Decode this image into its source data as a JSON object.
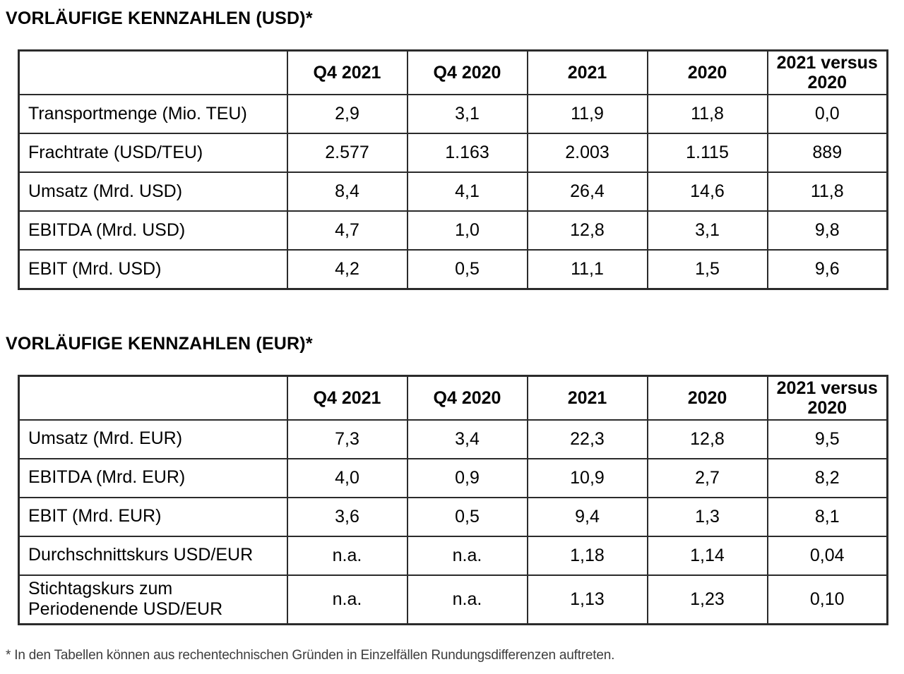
{
  "colors": {
    "background": "#ffffff",
    "text": "#000000",
    "table_border": "#2b2b2b",
    "footnote_text": "#3d3d3d"
  },
  "document": {
    "sections": [
      {
        "id": "usd",
        "title": "VORLÄUFIGE KENNZAHLEN (USD)*",
        "table": {
          "column_headers": [
            "",
            "Q4 2021",
            "Q4 2020",
            "2021",
            "2020",
            "2021 versus 2020"
          ],
          "rows": [
            {
              "label": "Transportmenge (Mio. TEU)",
              "values": [
                "2,9",
                "3,1",
                "11,9",
                "11,8",
                "0,0"
              ]
            },
            {
              "label": "Frachtrate (USD/TEU)",
              "values": [
                "2.577",
                "1.163",
                "2.003",
                "1.115",
                "889"
              ]
            },
            {
              "label": "Umsatz (Mrd. USD)",
              "values": [
                "8,4",
                "4,1",
                "26,4",
                "14,6",
                "11,8"
              ]
            },
            {
              "label": "EBITDA (Mrd. USD)",
              "values": [
                "4,7",
                "1,0",
                "12,8",
                "3,1",
                "9,8"
              ]
            },
            {
              "label": "EBIT (Mrd. USD)",
              "values": [
                "4,2",
                "0,5",
                "11,1",
                "1,5",
                "9,6"
              ]
            }
          ]
        }
      },
      {
        "id": "eur",
        "title": "VORLÄUFIGE KENNZAHLEN (EUR)*",
        "table": {
          "column_headers": [
            "",
            "Q4 2021",
            "Q4 2020",
            "2021",
            "2020",
            "2021 versus 2020"
          ],
          "rows": [
            {
              "label": "Umsatz (Mrd. EUR)",
              "values": [
                "7,3",
                "3,4",
                "22,3",
                "12,8",
                "9,5"
              ]
            },
            {
              "label": "EBITDA (Mrd. EUR)",
              "values": [
                "4,0",
                "0,9",
                "10,9",
                "2,7",
                "8,2"
              ]
            },
            {
              "label": "EBIT (Mrd. EUR)",
              "values": [
                "3,6",
                "0,5",
                "9,4",
                "1,3",
                "8,1"
              ]
            },
            {
              "label": "Durchschnittskurs USD/EUR",
              "values": [
                "n.a.",
                "n.a.",
                "1,18",
                "1,14",
                "0,04"
              ]
            },
            {
              "label": "Stichtagskurs zum Periodenende USD/EUR",
              "values": [
                "n.a.",
                "n.a.",
                "1,13",
                "1,23",
                "0,10"
              ]
            }
          ]
        }
      }
    ],
    "footnote": "* In den Tabellen können aus rechentechnischen Gründen in Einzelfällen Rundungsdifferenzen auftreten."
  }
}
